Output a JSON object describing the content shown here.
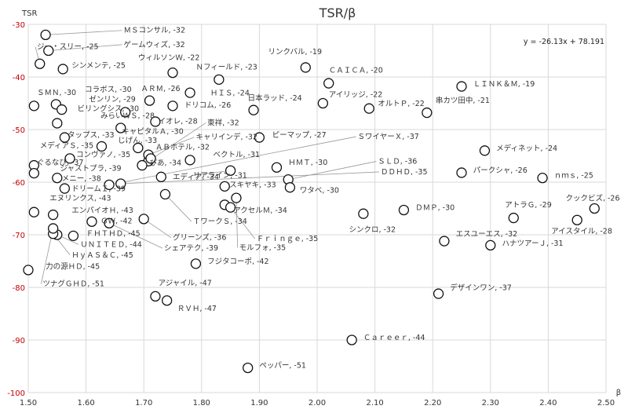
{
  "chart_data": {
    "type": "scatter",
    "title": "TSR/β",
    "xlabel": "β",
    "ylabel": "TSR",
    "xlim": [
      1.5,
      2.5
    ],
    "ylim": [
      -100,
      -30
    ],
    "xticks": [
      "1.50",
      "1.60",
      "1.70",
      "1.80",
      "1.90",
      "2.00",
      "2.10",
      "2.20",
      "2.30",
      "2.40",
      "2.50"
    ],
    "yticks": [
      "-30",
      "-40",
      "-50",
      "-60",
      "-70",
      "-80",
      "-90",
      "-100"
    ],
    "grid": true,
    "trendline_label": "y = -26.13x + 78.191",
    "points": [
      {
        "label": "ＭＳコンサル, -32",
        "x": 1.53,
        "y": -32,
        "lx": 1.665,
        "ly": -31.6,
        "lead": true
      },
      {
        "label": "ゲームウィズ, -32",
        "x": 1.535,
        "y": -35,
        "lx": 1.665,
        "ly": -34.3,
        "lead": true
      },
      {
        "label": "ジー・スリー, -25",
        "x": 1.52,
        "y": -37.5,
        "lx": 1.515,
        "ly": -34.7,
        "lead": true
      },
      {
        "label": "シンメンテ, -25",
        "x": 1.56,
        "y": -38.5,
        "lx": 1.575,
        "ly": -38.3,
        "lead": false
      },
      {
        "label": "ウィルソンＷ, -22",
        "x": 1.75,
        "y": -39.2,
        "lx": 1.69,
        "ly": -36.8,
        "lead": false
      },
      {
        "label": "Ｎフィールド, -23",
        "x": 1.83,
        "y": -40.5,
        "lx": 1.79,
        "ly": -38.6,
        "lead": false
      },
      {
        "label": "ＳＭＮ, -30",
        "x": 1.51,
        "y": -45.5,
        "lx": 1.515,
        "ly": -43.4,
        "lead": false
      },
      {
        "label": "コラボス, -30",
        "x": 1.548,
        "y": -45.2,
        "lx": 1.598,
        "ly": -42.8,
        "lead": false
      },
      {
        "label": "ゼンリン, -29",
        "x": 1.558,
        "y": -46.2,
        "lx": 1.605,
        "ly": -44.7,
        "lead": false
      },
      {
        "label": "ビリングシス, -30",
        "x": 1.55,
        "y": -48.8,
        "lx": 1.585,
        "ly": -46.5,
        "lead": false
      },
      {
        "label": "ＡＲＭ, -26",
        "x": 1.71,
        "y": -44.5,
        "lx": 1.695,
        "ly": -42.7,
        "lead": false
      },
      {
        "label": "ＨＩＳ, -24",
        "x": 1.78,
        "y": -43,
        "lx": 1.815,
        "ly": -43.5,
        "lead": false
      },
      {
        "label": "みらいＷＳ, -28",
        "x": 1.668,
        "y": -46.7,
        "lx": 1.625,
        "ly": -47.8,
        "lead": false
      },
      {
        "label": "ドリコム, -26",
        "x": 1.75,
        "y": -45.5,
        "lx": 1.77,
        "ly": -45.8,
        "lead": false
      },
      {
        "label": "イオレ, -28",
        "x": 1.72,
        "y": -48.5,
        "lx": 1.725,
        "ly": -48.9,
        "lead": false
      },
      {
        "label": "タップス, -33",
        "x": 1.563,
        "y": -51.5,
        "lx": 1.568,
        "ly": -51.5,
        "lead": false
      },
      {
        "label": "キャピタルＡ, -30",
        "x": 1.66,
        "y": -49.7,
        "lx": 1.662,
        "ly": -50.8,
        "lead": false
      },
      {
        "label": "東祥, -32",
        "x": 1.708,
        "y": -56,
        "lx": 1.81,
        "ly": -49.2,
        "lead": true
      },
      {
        "label": "キャリインデ, -32",
        "x": 1.708,
        "y": -54.8,
        "lx": 1.79,
        "ly": -51.9,
        "lead": true
      },
      {
        "label": "じげん, -33",
        "x": 1.69,
        "y": -53.5,
        "lx": 1.655,
        "ly": -52.5,
        "lead": false
      },
      {
        "label": "メディアＳ, -35",
        "x": 1.627,
        "y": -53.2,
        "lx": 1.52,
        "ly": -53.5,
        "lead": false
      },
      {
        "label": "コンヴァノ, -35",
        "x": 1.572,
        "y": -55.5,
        "lx": 1.583,
        "ly": -55.2,
        "lead": false
      },
      {
        "label": "ＡＢホテル, -32",
        "x": 1.712,
        "y": -55.5,
        "lx": 1.72,
        "ly": -53.8,
        "lead": false
      },
      {
        "label": "ぐるなび, -37",
        "x": 1.51,
        "y": -56.8,
        "lx": 1.515,
        "ly": -56.7,
        "lead": false
      },
      {
        "label": "ぴあ, -34",
        "x": 1.697,
        "y": -56.8,
        "lx": 1.71,
        "ly": -56.8,
        "lead": false
      },
      {
        "label": "ジャストプラ, -39",
        "x": 1.51,
        "y": -58.3,
        "lx": 1.555,
        "ly": -57.8,
        "lead": false
      },
      {
        "label": "メニー, -38",
        "x": 1.55,
        "y": -59.2,
        "lx": 1.558,
        "ly": -59.8,
        "lead": false
      },
      {
        "label": "ドリームＩ, -39",
        "x": 1.563,
        "y": -61.2,
        "lx": 1.575,
        "ly": -61.7,
        "lead": false
      },
      {
        "label": "エヌリンクス, -43",
        "x": 1.51,
        "y": -65.7,
        "lx": 1.537,
        "ly": -63.5,
        "lead": false
      },
      {
        "label": "エンパイオＨ, -43",
        "x": 1.543,
        "y": -66.2,
        "lx": 1.575,
        "ly": -65.8,
        "lead": false
      },
      {
        "label": "ＧＷ, -42",
        "x": 1.61,
        "y": -67.5,
        "lx": 1.625,
        "ly": -67.8,
        "lead": false
      },
      {
        "label": "ＦＨＴＨＤ, -45",
        "x": 1.578,
        "y": -70.2,
        "lx": 1.6,
        "ly": -70.2,
        "lead": false
      },
      {
        "label": "ＵＮＩＴＥＤ, -44",
        "x": 1.55,
        "y": -70,
        "lx": 1.59,
        "ly": -72.3,
        "lead": true
      },
      {
        "label": "ＨｙＡＳ＆Ｃ, -45",
        "x": 1.543,
        "y": -69.8,
        "lx": 1.575,
        "ly": -74.3,
        "lead": true
      },
      {
        "label": "力の源ＨＤ, -45",
        "x": 1.5,
        "y": -76.7,
        "lx": 1.53,
        "ly": -76.5,
        "lead": false
      },
      {
        "label": "ツナグＧＨＤ, -51",
        "x": 1.543,
        "y": -68.8,
        "lx": 1.525,
        "ly": -79.8,
        "lead": true
      },
      {
        "label": "エディア, -34",
        "x": 1.73,
        "y": -59,
        "lx": 1.75,
        "ly": -59.5,
        "lead": false
      },
      {
        "label": "ＴワークＳ, -34",
        "x": 1.737,
        "y": -62.3,
        "lx": 1.785,
        "ly": -67.9,
        "lead": true
      },
      {
        "label": "グリーンズ, -36",
        "x": 1.7,
        "y": -67,
        "lx": 1.75,
        "ly": -71,
        "lead": true
      },
      {
        "label": "シェアテク, -39",
        "x": 1.64,
        "y": -67.8,
        "lx": 1.735,
        "ly": -73,
        "lead": true
      },
      {
        "label": "フジタコーポ, -42",
        "x": 1.79,
        "y": -75.5,
        "lx": 1.81,
        "ly": -75.5,
        "lead": false
      },
      {
        "label": "リアライン, -31",
        "x": 1.85,
        "y": -57.8,
        "lx": 1.785,
        "ly": -59.2,
        "lead": true
      },
      {
        "label": "ベクトル, -31",
        "x": 1.78,
        "y": -55.8,
        "lx": 1.82,
        "ly": -55.2,
        "lead": false
      },
      {
        "label": "スキヤキ, -33",
        "x": 1.84,
        "y": -60.8,
        "lx": 1.848,
        "ly": -61,
        "lead": false
      },
      {
        "label": "アクセルＭ, -34",
        "x": 1.84,
        "y": -64.3,
        "lx": 1.855,
        "ly": -65.8,
        "lead": false
      },
      {
        "label": "Ｆｒｉｎｇｅ, -35",
        "x": 1.85,
        "y": -64.8,
        "lx": 1.895,
        "ly": -71.2,
        "lead": true
      },
      {
        "label": "モルフォ, -35",
        "x": 1.86,
        "y": -63,
        "lx": 1.865,
        "ly": -72.9,
        "lead": true
      },
      {
        "label": "ピーマップ, -27",
        "x": 1.9,
        "y": -51.5,
        "lx": 1.922,
        "ly": -51.5,
        "lead": false
      },
      {
        "label": "日本ラッド, -24",
        "x": 1.89,
        "y": -46.3,
        "lx": 1.88,
        "ly": -44.5,
        "lead": false
      },
      {
        "label": "リンクバル, -19",
        "x": 1.98,
        "y": -38.2,
        "lx": 1.915,
        "ly": -35.7,
        "lead": false
      },
      {
        "label": "ＣＡＩＣＡ, -20",
        "x": 2.02,
        "y": -41.2,
        "lx": 2.02,
        "ly": -39.2,
        "lead": false
      },
      {
        "label": "アイリッジ, -22",
        "x": 2.01,
        "y": -45,
        "lx": 2.02,
        "ly": -43.8,
        "lead": false
      },
      {
        "label": "オルトＰ, -22",
        "x": 2.09,
        "y": -46,
        "lx": 2.105,
        "ly": -45.5,
        "lead": false
      },
      {
        "label": "ＨＭＴ, -30",
        "x": 1.93,
        "y": -57.2,
        "lx": 1.95,
        "ly": -56.7,
        "lead": false
      },
      {
        "label": "ＳＬＤ, -36",
        "x": 1.95,
        "y": -59.5,
        "lx": 2.105,
        "ly": -56.5,
        "lead": true
      },
      {
        "label": "ＤＤＨＤ, -35",
        "x": 1.66,
        "y": -60.3,
        "lx": 2.11,
        "ly": -58.5,
        "lead": true
      },
      {
        "label": "ＳワイヤーＸ, -37",
        "x": 1.64,
        "y": -60.5,
        "lx": 2.07,
        "ly": -51.8,
        "lead": true
      },
      {
        "label": "ワタベ, -30",
        "x": 1.953,
        "y": -61,
        "lx": 1.97,
        "ly": -62,
        "lead": false
      },
      {
        "label": "シンクロ, -32",
        "x": 2.08,
        "y": -66,
        "lx": 2.055,
        "ly": -69.5,
        "lead": false
      },
      {
        "label": "ＤＭＰ, -30",
        "x": 2.15,
        "y": -65.3,
        "lx": 2.17,
        "ly": -65.3,
        "lead": false
      },
      {
        "label": "串カツ田中, -21",
        "x": 2.19,
        "y": -46.8,
        "lx": 2.205,
        "ly": -44.9,
        "lead": false
      },
      {
        "label": "ＬＩＮＫ＆Ｍ, -19",
        "x": 2.25,
        "y": -41.8,
        "lx": 2.27,
        "ly": -41.8,
        "lead": false
      },
      {
        "label": "メディネット, -24",
        "x": 2.29,
        "y": -54,
        "lx": 2.31,
        "ly": -54,
        "lead": false
      },
      {
        "label": "パークシャ, -26",
        "x": 2.25,
        "y": -58.2,
        "lx": 2.27,
        "ly": -58.2,
        "lead": false
      },
      {
        "label": "ｎｍｓ, -25",
        "x": 2.39,
        "y": -59.2,
        "lx": 2.41,
        "ly": -59.2,
        "lead": false
      },
      {
        "label": "クックビズ, -26",
        "x": 2.48,
        "y": -65,
        "lx": 2.43,
        "ly": -63.5,
        "lead": false
      },
      {
        "label": "アトラＧ, -29",
        "x": 2.34,
        "y": -66.8,
        "lx": 2.325,
        "ly": -64.8,
        "lead": false
      },
      {
        "label": "アイスタイル, -28",
        "x": 2.45,
        "y": -67.2,
        "lx": 2.405,
        "ly": -69.8,
        "lead": false
      },
      {
        "label": "エスユーエス, -32",
        "x": 2.22,
        "y": -71.2,
        "lx": 2.24,
        "ly": -70.3,
        "lead": false
      },
      {
        "label": "ハナツアーＪ, -31",
        "x": 2.3,
        "y": -72,
        "lx": 2.32,
        "ly": -72.1,
        "lead": false
      },
      {
        "label": "デザインワン, -37",
        "x": 2.21,
        "y": -81.2,
        "lx": 2.23,
        "ly": -80.5,
        "lead": false
      },
      {
        "label": "アジャイル, -47",
        "x": 1.72,
        "y": -81.7,
        "lx": 1.725,
        "ly": -79.6,
        "lead": false
      },
      {
        "label": "ＲＶＨ, -47",
        "x": 1.74,
        "y": -82.5,
        "lx": 1.758,
        "ly": -84.5,
        "lead": false
      },
      {
        "label": "Ｃａｒｅｅｒ, -44",
        "x": 2.06,
        "y": -90,
        "lx": 2.08,
        "ly": -90,
        "lead": false
      },
      {
        "label": "ペッパー, -51",
        "x": 1.88,
        "y": -95.3,
        "lx": 1.9,
        "ly": -95.3,
        "lead": false
      }
    ]
  }
}
